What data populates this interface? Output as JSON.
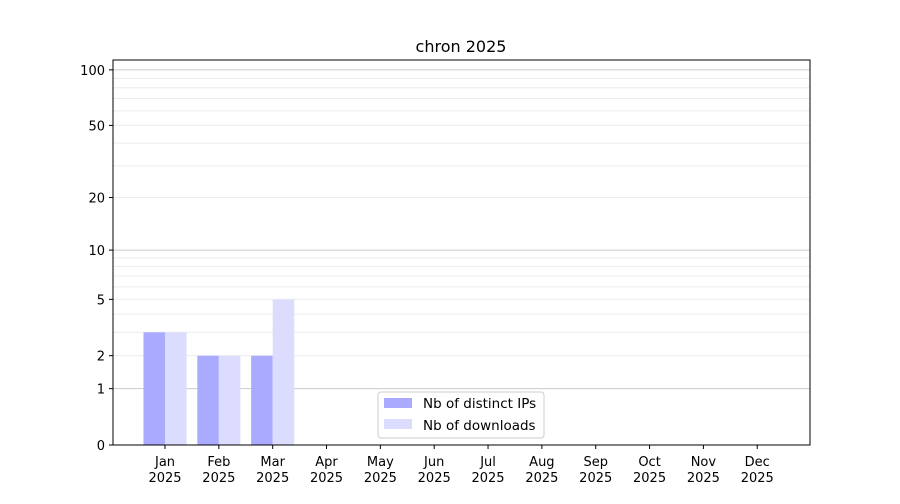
{
  "chart_data": {
    "type": "bar",
    "title": "chron 2025",
    "xlabel": "",
    "ylabel": "",
    "yscale": "log(1+y)",
    "ylim": [
      0,
      113
    ],
    "grid": true,
    "legend_position": "bottom-center",
    "categories": [
      [
        "Jan",
        "2025"
      ],
      [
        "Feb",
        "2025"
      ],
      [
        "Mar",
        "2025"
      ],
      [
        "Apr",
        "2025"
      ],
      [
        "May",
        "2025"
      ],
      [
        "Jun",
        "2025"
      ],
      [
        "Jul",
        "2025"
      ],
      [
        "Aug",
        "2025"
      ],
      [
        "Sep",
        "2025"
      ],
      [
        "Oct",
        "2025"
      ],
      [
        "Nov",
        "2025"
      ],
      [
        "Dec",
        "2025"
      ]
    ],
    "yticks": [
      0,
      1,
      2,
      5,
      10,
      20,
      50,
      100
    ],
    "series": [
      {
        "name": "Nb of distinct IPs",
        "color": "#aaaaff",
        "values": [
          3,
          2,
          2,
          0,
          0,
          0,
          0,
          0,
          0,
          0,
          0,
          0
        ]
      },
      {
        "name": "Nb of downloads",
        "color": "#dcdcff",
        "values": [
          3,
          2,
          5,
          0,
          0,
          0,
          0,
          0,
          0,
          0,
          0,
          0
        ]
      }
    ]
  }
}
